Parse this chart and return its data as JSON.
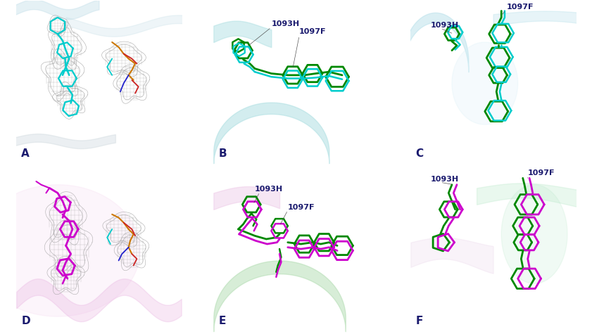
{
  "panels": [
    "A",
    "B",
    "C",
    "D",
    "E",
    "F"
  ],
  "label_color": "#1a1a6e",
  "annotation_1093H": "1093H",
  "annotation_1097F": "1097F",
  "bg_A": "#eaf5f8",
  "bg_B": "#eafaff",
  "bg_C": "#eafaff",
  "bg_D": "#f8ecf8",
  "bg_E": "#f4fbf4",
  "bg_F": "#f4fbf4",
  "panel_border_color": "#333333",
  "cyan_color": "#00cccc",
  "green_color": "#008800",
  "magenta_color": "#cc00cc",
  "mesh_color": "#999999",
  "orange_color": "#cc7700",
  "red_color": "#cc2222",
  "blue_color": "#2222cc",
  "label_fontsize": 11
}
